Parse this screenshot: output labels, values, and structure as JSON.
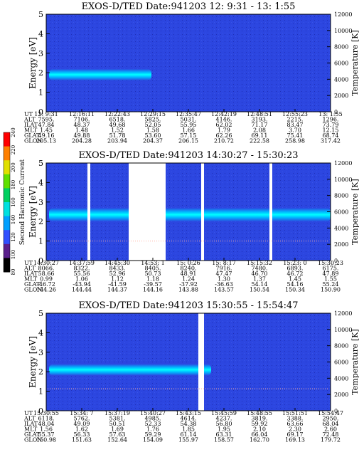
{
  "chart_data": [
    {
      "type": "heatmap",
      "title": "EXOS-D/TED   Date:941203  12: 9:31 - 13: 1:55",
      "ylabel": "Energy [eV]",
      "y2label": "Temperature [K]",
      "ylim": [
        0,
        5
      ],
      "y2lim": [
        0,
        12000
      ],
      "yticks": [
        "0",
        "1",
        "2",
        "3",
        "4",
        "5"
      ],
      "y2ticks": [
        "0",
        "2000",
        "4000",
        "6000",
        "8000",
        "10000",
        "12000"
      ],
      "table_rows": [
        "UT",
        "ALT",
        "ILAT",
        "MLT",
        "GLAT",
        "GLON"
      ],
      "table_cols": [
        [
          "12: 9:31",
          "7595.",
          "47.84",
          "1.45",
          "49.16",
          "205.13"
        ],
        [
          "12:16:11",
          "7106.",
          "48.37",
          "1.48",
          "49.88",
          "204.28"
        ],
        [
          "12:22:43",
          "6518.",
          "49.68",
          "1.52",
          "51.78",
          "203.94"
        ],
        [
          "12:29:15",
          "5825.",
          "52.05",
          "1.58",
          "53.60",
          "204.37"
        ],
        [
          "12:35:47",
          "5031.",
          "55.95",
          "1.66",
          "57.15",
          "206.15"
        ],
        [
          "12:42:19",
          "4146.",
          "62.02",
          "1.79",
          "62.26",
          "210.72"
        ],
        [
          "12:48:51",
          "3193.",
          "71.17",
          "2.08",
          "69.11",
          "222.58"
        ],
        [
          "12:55:23",
          "2215.",
          "83.47",
          "3.70",
          "75.41",
          "258.98"
        ],
        [
          "13: 1:55",
          "1296.",
          "73.79",
          "12.15",
          "68.74",
          "317.42"
        ]
      ],
      "band": {
        "center_ev": 1.9,
        "half_width_ev": 0.3,
        "end_fraction": 0.37
      },
      "temperature_trace": false
    },
    {
      "type": "heatmap",
      "title": "EXOS-D/TED   Date:941203  14:30:27 - 15:30:23",
      "ylabel": "Energy [eV]",
      "y2label": "Temperature [K]",
      "ylim": [
        0,
        5
      ],
      "y2lim": [
        0,
        12000
      ],
      "yticks": [
        "0",
        "1",
        "2",
        "3",
        "4",
        "5"
      ],
      "y2ticks": [
        "0",
        "2000",
        "4000",
        "6000",
        "8000",
        "10000",
        "12000"
      ],
      "table_rows": [
        "UT",
        "ALT",
        "ILAT",
        "MLT",
        "GLAT",
        "GLON"
      ],
      "table_cols": [
        [
          "14:30:27",
          "8066.",
          "58.66",
          "0.99",
          "-46.72",
          "144.26"
        ],
        [
          "14:37:59",
          "8322.",
          "55.56",
          "1.06",
          "-43.94",
          "144.44"
        ],
        [
          "14:45:30",
          "8433.",
          "52.96",
          "1.12",
          "-41.59",
          "144.37"
        ],
        [
          "14:53: 1",
          "8405.",
          "50.73",
          "1.18",
          "-39.57",
          "144.16"
        ],
        [
          "15: 0:26",
          "8240.",
          "48.91",
          "1.24",
          "-37.92",
          "143.88"
        ],
        [
          "15: 8:17",
          "7916.",
          "47.47",
          "1.30",
          "-36.63",
          "143.57"
        ],
        [
          "15:15:32",
          "7480.",
          "46.70",
          "1.37",
          "54.14",
          "150.54"
        ],
        [
          "15:23: 0",
          "6893.",
          "46.72",
          "1.45",
          "54.16",
          "150.34"
        ],
        [
          "15:30:23",
          "6175.",
          "47.89",
          "1.55",
          "55.24",
          "150.90"
        ]
      ],
      "band": {
        "center_ev": 2.35,
        "half_width_ev": 0.35,
        "end_fraction": 1.0
      },
      "temperature_trace": true,
      "temperature_k": 2400,
      "gaps": [
        [
          0.145,
          0.155
        ],
        [
          0.29,
          0.42
        ],
        [
          0.545,
          0.555
        ],
        [
          0.785,
          0.795
        ]
      ]
    },
    {
      "type": "heatmap",
      "title": "EXOS-D/TED   Date:941203  15:30:55 - 15:54:47",
      "ylabel": "Energy [eV]",
      "y2label": "Temperature [K]",
      "ylim": [
        0,
        5
      ],
      "y2lim": [
        0,
        12000
      ],
      "yticks": [
        "0",
        "1",
        "2",
        "3",
        "4",
        "5"
      ],
      "y2ticks": [
        "0",
        "2000",
        "4000",
        "6000",
        "8000",
        "10000",
        "12000"
      ],
      "table_rows": [
        "UT",
        "ALT",
        "ILAT",
        "MLT",
        "GLAT",
        "GLON"
      ],
      "table_cols": [
        [
          "15:30:55",
          "6118.",
          "48.04",
          "1.56",
          "55.37",
          "150.98"
        ],
        [
          "15:34: 7",
          "5762.",
          "49.09",
          "1.62",
          "56.33",
          "151.63"
        ],
        [
          "15:37:19",
          "5381.",
          "50.51",
          "1.69",
          "57.63",
          "152.64"
        ],
        [
          "15:40:27",
          "4985.",
          "52.33",
          "1.76",
          "59.29",
          "154.09"
        ],
        [
          "15:43:15",
          "4614.",
          "54.38",
          "1.85",
          "61.14",
          "155.97"
        ],
        [
          "15:45:59",
          "4237.",
          "56.80",
          "1.95",
          "63.31",
          "158.57"
        ],
        [
          "15:48:55",
          "3819.",
          "59.92",
          "2.10",
          "66.04",
          "162.70"
        ],
        [
          "15:51:51",
          "3388.",
          "63.66",
          "2.30",
          "69.17",
          "169.13"
        ],
        [
          "15:54:47",
          "2950.",
          "68.04",
          "2.60",
          "72.48",
          "179.72"
        ]
      ],
      "band": {
        "center_ev": 2.1,
        "half_width_ev": 0.3,
        "end_fraction": 0.58
      },
      "temperature_trace": true,
      "temperature_k": 2700,
      "gaps": [
        [
          0.535,
          0.555
        ]
      ]
    }
  ],
  "colorbar": {
    "label": "Second Harmonic Current",
    "ticks": [
      "80",
      "100",
      "120",
      "140",
      "160",
      "180",
      "200",
      "220",
      "240"
    ],
    "colors": [
      "#000000",
      "#5a1f8c",
      "#3050ff",
      "#00a0ff",
      "#00e0e0",
      "#00d060",
      "#60e000",
      "#e0e000",
      "#ff8000",
      "#ff0000"
    ]
  }
}
